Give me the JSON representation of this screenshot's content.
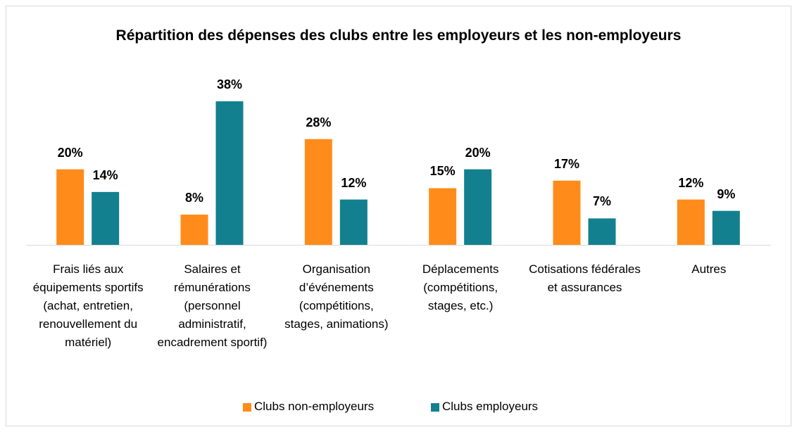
{
  "chart_data": {
    "type": "bar",
    "title": "Répartition des dépenses des clubs entre les employeurs et les non-employeurs",
    "categories": [
      "Frais liés aux équipements sportifs (achat, entretien, renouvellement du matériel)",
      "Salaires et rémunérations (personnel administratif, encadrement sportif)",
      "Organisation d’événements (compétitions, stages, animations)",
      "Déplacements (compétitions, stages, etc.)",
      "Cotisations fédérales et assurances",
      "Autres"
    ],
    "series": [
      {
        "name": "Clubs non-employeurs",
        "color": "#ff8c1a",
        "values": [
          20,
          8,
          28,
          15,
          17,
          12
        ],
        "value_labels": [
          "20%",
          "8%",
          "28%",
          "15%",
          "17%",
          "12%"
        ]
      },
      {
        "name": "Clubs employeurs",
        "color": "#12808e",
        "values": [
          14,
          38,
          12,
          20,
          7,
          9
        ],
        "value_labels": [
          "14%",
          "38%",
          "12%",
          "20%",
          "7%",
          "9%"
        ]
      }
    ],
    "legend": "bottom"
  }
}
